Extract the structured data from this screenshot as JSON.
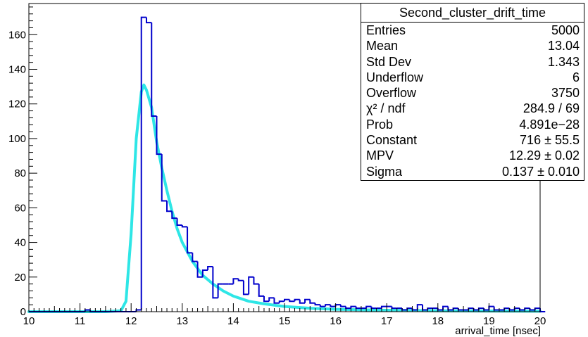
{
  "chart_data": {
    "type": "histogram",
    "xlabel": "arrival_time [nsec]",
    "ylabel": "",
    "xlim": [
      10,
      20
    ],
    "ylim": [
      0,
      178
    ],
    "x_ticks": [
      "10",
      "11",
      "12",
      "13",
      "14",
      "15",
      "16",
      "17",
      "18",
      "19",
      "20"
    ],
    "y_ticks": [
      "0",
      "20",
      "40",
      "60",
      "80",
      "100",
      "120",
      "140",
      "160"
    ],
    "bin_width": 0.1,
    "hist_color": "#0000cc",
    "fit_color": "#2ee6e6",
    "histogram": {
      "x_start": 10.0,
      "counts": [
        0,
        0,
        0,
        0,
        0,
        0,
        0,
        0,
        0,
        0,
        0,
        1,
        0,
        0,
        0,
        0,
        0,
        0,
        0,
        0,
        0,
        1,
        170,
        167,
        113,
        91,
        64,
        58,
        54,
        50,
        49,
        34,
        29,
        20,
        24,
        26,
        8,
        16,
        16,
        16,
        19,
        18,
        10,
        20,
        16,
        9,
        6,
        8,
        5,
        6,
        7,
        6,
        7,
        5,
        7,
        5,
        4,
        3,
        4,
        3,
        4,
        3,
        2,
        3,
        2,
        2,
        3,
        2,
        2,
        3,
        3,
        2,
        2,
        1,
        2,
        1,
        4,
        1,
        2,
        2,
        1,
        3,
        1,
        2,
        1,
        1,
        2,
        1,
        2,
        1,
        3,
        1,
        1,
        2,
        1,
        2,
        1,
        2,
        1,
        2,
        0
      ]
    },
    "fit": {
      "function": "Landau",
      "points": [
        [
          10.0,
          0
        ],
        [
          11.5,
          0
        ],
        [
          11.8,
          0.5
        ],
        [
          11.9,
          6
        ],
        [
          12.0,
          45
        ],
        [
          12.1,
          100
        ],
        [
          12.2,
          127
        ],
        [
          12.25,
          131
        ],
        [
          12.3,
          128
        ],
        [
          12.4,
          118
        ],
        [
          12.5,
          98
        ],
        [
          12.6,
          83
        ],
        [
          12.7,
          70
        ],
        [
          12.8,
          58
        ],
        [
          12.9,
          48
        ],
        [
          13.0,
          40
        ],
        [
          13.2,
          29
        ],
        [
          13.4,
          21
        ],
        [
          13.6,
          16
        ],
        [
          13.8,
          12
        ],
        [
          14.0,
          9
        ],
        [
          14.3,
          6
        ],
        [
          14.6,
          4.5
        ],
        [
          15.0,
          3
        ],
        [
          15.5,
          2
        ],
        [
          16.0,
          1.4
        ],
        [
          17.0,
          0.8
        ],
        [
          18.0,
          0.5
        ],
        [
          19.0,
          0.35
        ],
        [
          20.0,
          0.25
        ]
      ]
    },
    "stats_box": {
      "title": "Second_cluster_drift_time",
      "rows": [
        {
          "label": "Entries",
          "value": "5000"
        },
        {
          "label": "Mean",
          "value": "13.04"
        },
        {
          "label": "Std Dev",
          "value": "1.343"
        },
        {
          "label": "Underflow",
          "value": "6"
        },
        {
          "label": "Overflow",
          "value": "3750"
        },
        {
          "label": "χ² / ndf",
          "value": "284.9 / 69"
        },
        {
          "label": "Prob",
          "value": "4.891e−28"
        },
        {
          "label": "Constant",
          "value": "716 ± 55.5"
        },
        {
          "label": "MPV",
          "value": "12.29 ± 0.02"
        },
        {
          "label": "Sigma",
          "value": "0.137 ± 0.010"
        }
      ]
    }
  }
}
